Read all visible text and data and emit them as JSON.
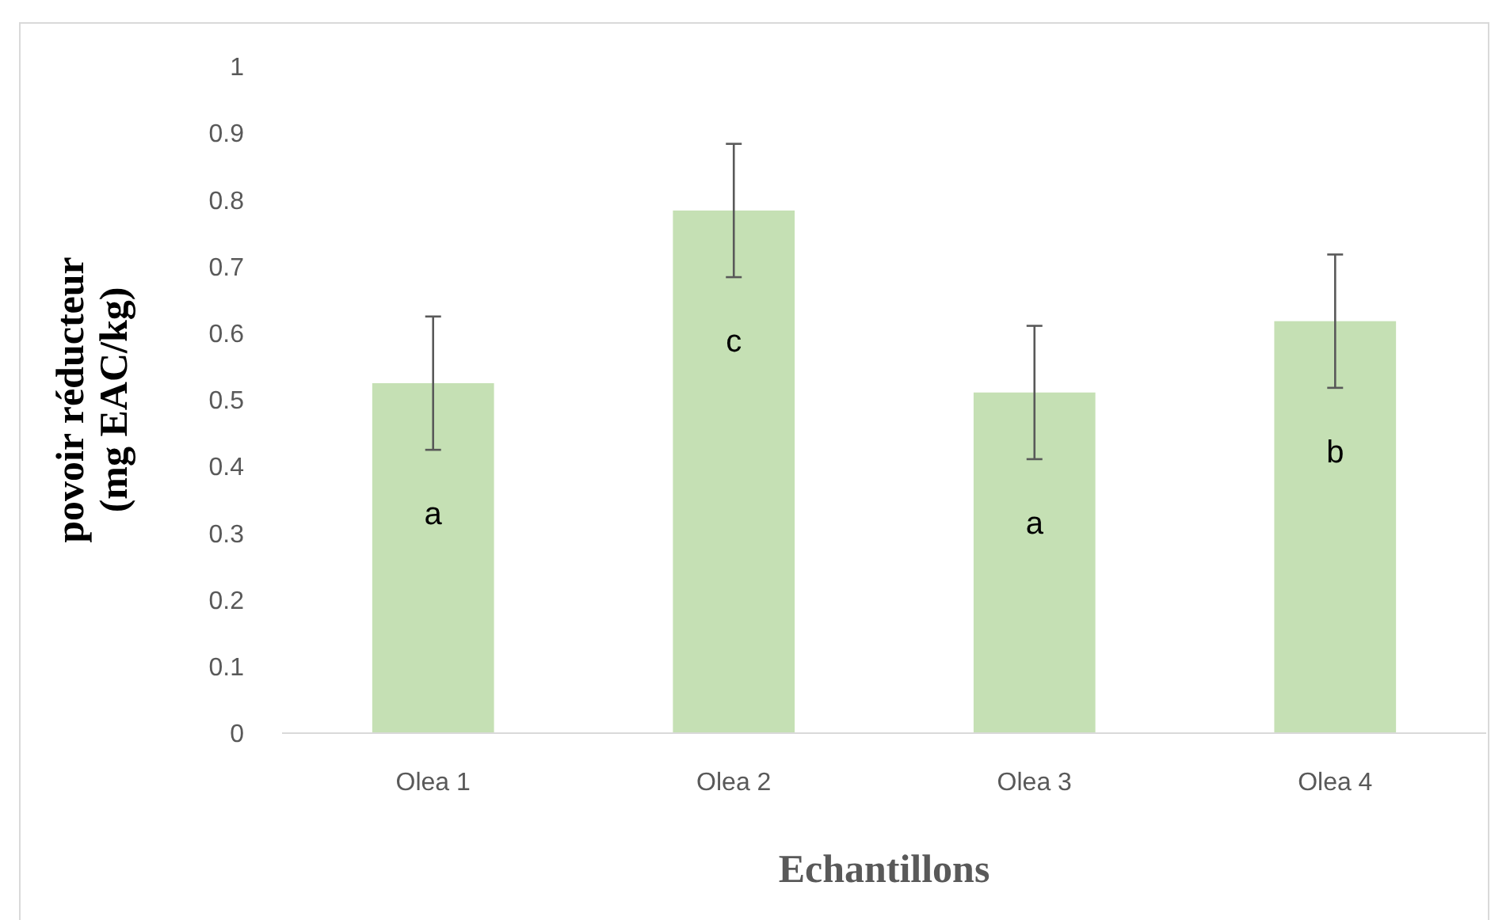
{
  "chart_data": {
    "type": "bar",
    "xlabel": "Echantillons",
    "ylabel": "povoir réducteur\n(mg EAC/kg)",
    "categories": [
      "Olea 1",
      "Olea 2",
      "Olea 3",
      "Olea 4"
    ],
    "values": [
      0.525,
      0.784,
      0.511,
      0.618
    ],
    "errors": [
      0.1,
      0.1,
      0.1,
      0.1
    ],
    "color": "#c5e0b4",
    "ylim": [
      0,
      1
    ],
    "yticks": [
      0,
      0.1,
      0.2,
      0.3,
      0.4,
      0.5,
      0.6,
      0.7,
      0.8,
      0.9,
      1
    ],
    "grid": false,
    "annotations": [
      "a",
      "c",
      "a",
      "b"
    ]
  }
}
